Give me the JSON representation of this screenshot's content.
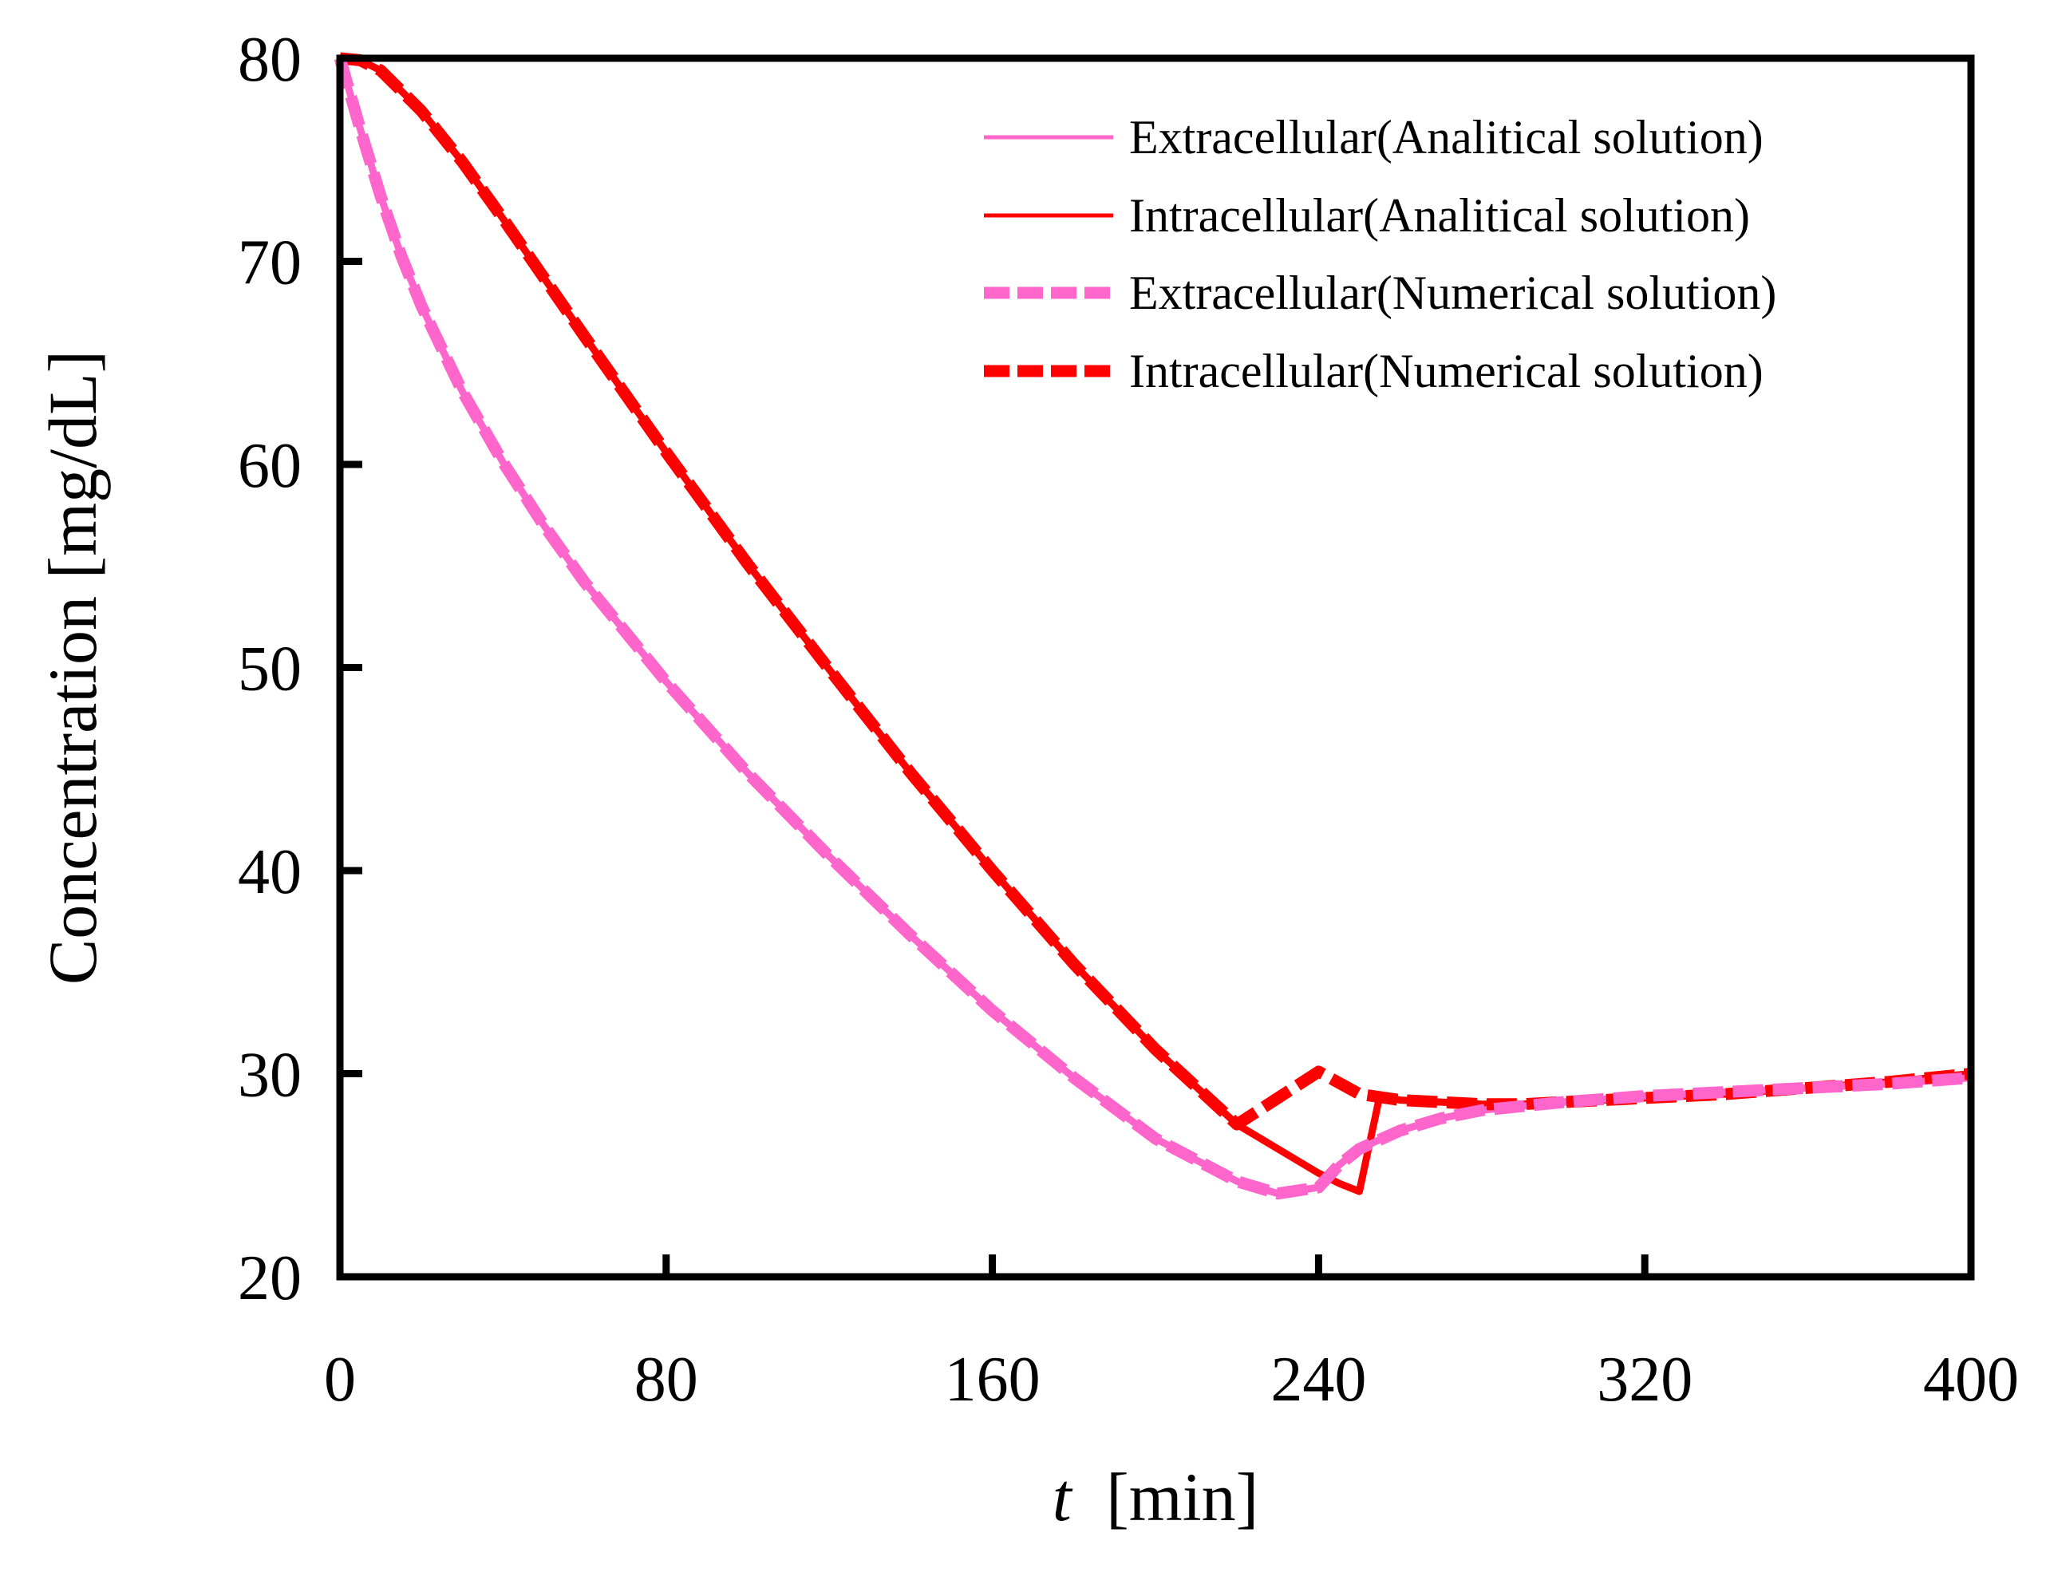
{
  "chart_data": {
    "type": "line",
    "title": "",
    "xlabel_var": "t",
    "xlabel_unit": "[min]",
    "ylabel": "Concentration [mg/dL]",
    "xlim": [
      0,
      400
    ],
    "ylim": [
      20,
      80
    ],
    "xticks": [
      "0",
      "80",
      "160",
      "240",
      "320",
      "400"
    ],
    "yticks": [
      "20",
      "30",
      "40",
      "50",
      "60",
      "70",
      "80"
    ],
    "grid": false,
    "legend_position": "top-right",
    "series": [
      {
        "name": "Extracellular(Analitical solution)",
        "color": "#ff66cc",
        "style": "solid",
        "x": [
          0,
          5,
          10,
          15,
          20,
          30,
          40,
          50,
          60,
          80,
          100,
          120,
          140,
          160,
          180,
          200,
          220,
          230,
          240,
          245,
          250,
          260,
          270,
          280,
          300,
          320,
          340,
          360,
          380,
          400
        ],
        "y": [
          80,
          76.5,
          73.2,
          70.3,
          67.8,
          63.6,
          60.1,
          57.0,
          54.2,
          49.3,
          44.8,
          40.7,
          36.8,
          33.1,
          29.8,
          26.8,
          24.7,
          24.1,
          24.4,
          25.5,
          26.3,
          27.2,
          27.8,
          28.2,
          28.6,
          28.9,
          29.1,
          29.3,
          29.5,
          29.8
        ]
      },
      {
        "name": "Intracellular(Analitical solution)",
        "color": "#ff0000",
        "style": "solid",
        "x": [
          0,
          5,
          10,
          20,
          30,
          40,
          60,
          80,
          100,
          120,
          140,
          160,
          180,
          200,
          220,
          240,
          245,
          250,
          255,
          260,
          270,
          280,
          290,
          300,
          320,
          340,
          360,
          380,
          400
        ],
        "y": [
          80,
          79.9,
          79.4,
          77.4,
          74.9,
          72.1,
          66.3,
          60.6,
          55.1,
          49.9,
          44.8,
          40.0,
          35.4,
          31.2,
          27.5,
          25.1,
          24.6,
          24.2,
          28.9,
          28.7,
          28.6,
          28.5,
          28.5,
          28.6,
          28.8,
          29.0,
          29.3,
          29.6,
          30.0
        ]
      },
      {
        "name": "Extracellular(Numerical solution)",
        "color": "#ff66cc",
        "style": "dashed",
        "x": [
          0,
          5,
          10,
          15,
          20,
          30,
          40,
          50,
          60,
          80,
          100,
          120,
          140,
          160,
          180,
          200,
          220,
          230,
          240,
          245,
          250,
          260,
          270,
          280,
          300,
          320,
          340,
          360,
          380,
          400
        ],
        "y": [
          80,
          76.5,
          73.2,
          70.3,
          67.8,
          63.6,
          60.1,
          57.0,
          54.2,
          49.3,
          44.8,
          40.7,
          36.8,
          33.1,
          29.8,
          26.8,
          24.7,
          24.1,
          24.4,
          25.5,
          26.3,
          27.2,
          27.8,
          28.2,
          28.6,
          28.9,
          29.1,
          29.3,
          29.5,
          29.8
        ]
      },
      {
        "name": "Intracellular(Numerical solution)",
        "color": "#ff0000",
        "style": "dashed",
        "x": [
          0,
          5,
          10,
          20,
          30,
          40,
          60,
          80,
          100,
          120,
          140,
          160,
          180,
          200,
          220,
          240,
          250,
          260,
          270,
          280,
          290,
          300,
          320,
          340,
          360,
          380,
          400
        ],
        "y": [
          80,
          79.9,
          79.4,
          77.4,
          74.9,
          72.1,
          66.3,
          60.6,
          55.1,
          49.9,
          44.8,
          40.0,
          35.4,
          31.2,
          27.5,
          30.1,
          29.0,
          28.7,
          28.6,
          28.5,
          28.5,
          28.6,
          28.8,
          29.0,
          29.3,
          29.6,
          30.0
        ]
      }
    ]
  }
}
